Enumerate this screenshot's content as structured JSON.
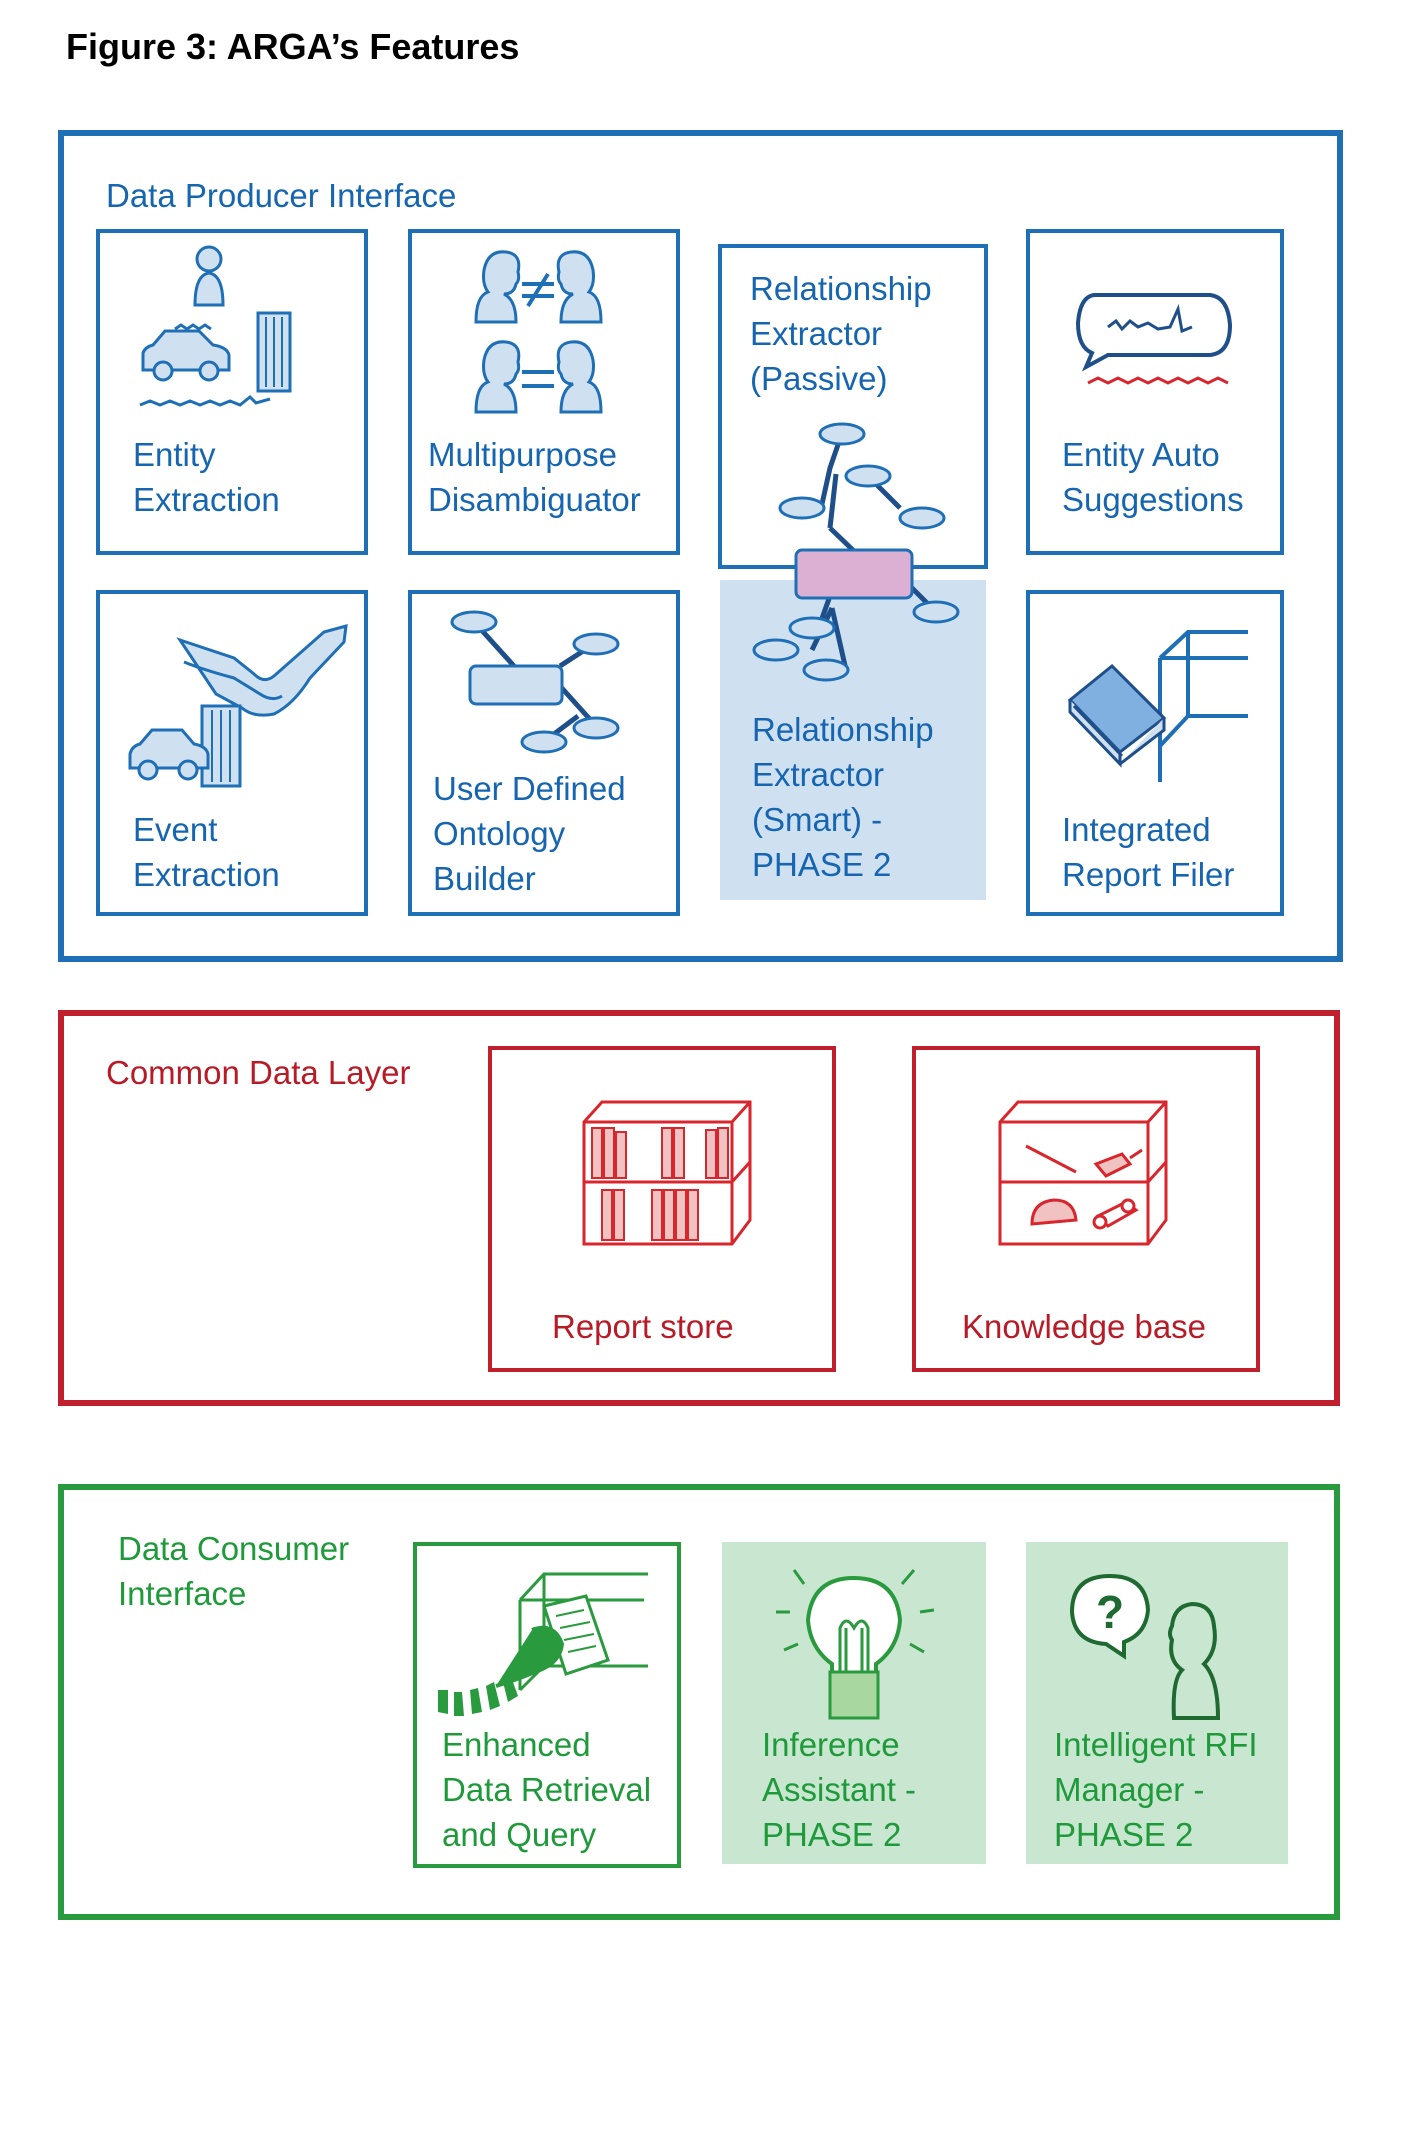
{
  "figure_title": "Figure 3: ARGA’s Features",
  "colors": {
    "producer": "#1f6fb6",
    "producer_fill": "#cfe0f1",
    "common": "#c0202e",
    "consumer": "#2a9a3e",
    "consumer_fill": "#c9e6d1",
    "node_pink": "#dcb0d2"
  },
  "producer": {
    "label": "Data Producer Interface",
    "boxes": [
      {
        "icon": "person-car-building-icon",
        "lines": [
          "Entity",
          "Extraction"
        ]
      },
      {
        "icon": "disambiguation-faces-icon",
        "lines": [
          "Multipurpose",
          "Disambiguator"
        ]
      },
      {
        "icon": "graph-network-icon",
        "lines": [
          "Relationship",
          "Extractor",
          "(Passive)"
        ]
      },
      {
        "icon": "speech-bubble-icon",
        "lines": [
          "Entity Auto",
          "Suggestions"
        ]
      },
      {
        "icon": "handshake-car-building-icon",
        "lines": [
          "Event",
          "Extraction"
        ]
      },
      {
        "icon": "ontology-graph-icon",
        "lines": [
          "User Defined",
          "Ontology",
          "Builder"
        ]
      },
      {
        "icon": "graph-network-icon",
        "lines": [
          "Relationship",
          "Extractor",
          "(Smart) -",
          "PHASE 2"
        ]
      },
      {
        "icon": "book-shelf-icon",
        "lines": [
          "Integrated",
          "Report Filer"
        ]
      }
    ]
  },
  "common": {
    "label": "Common Data Layer",
    "boxes": [
      {
        "icon": "bookshelf-icon",
        "lines": [
          "Report store"
        ]
      },
      {
        "icon": "shelf-objects-icon",
        "lines": [
          "Knowledge base"
        ]
      }
    ]
  },
  "consumer": {
    "label_lines": [
      "Data Consumer",
      "Interface"
    ],
    "boxes": [
      {
        "icon": "retrieval-hand-icon",
        "lines": [
          "Enhanced",
          "Data Retrieval",
          "and Query"
        ]
      },
      {
        "icon": "lightbulb-icon",
        "lines": [
          "Inference",
          "Assistant -",
          "PHASE 2"
        ]
      },
      {
        "icon": "question-person-icon",
        "lines": [
          "Intelligent RFI",
          "Manager -",
          "PHASE 2"
        ]
      }
    ]
  }
}
